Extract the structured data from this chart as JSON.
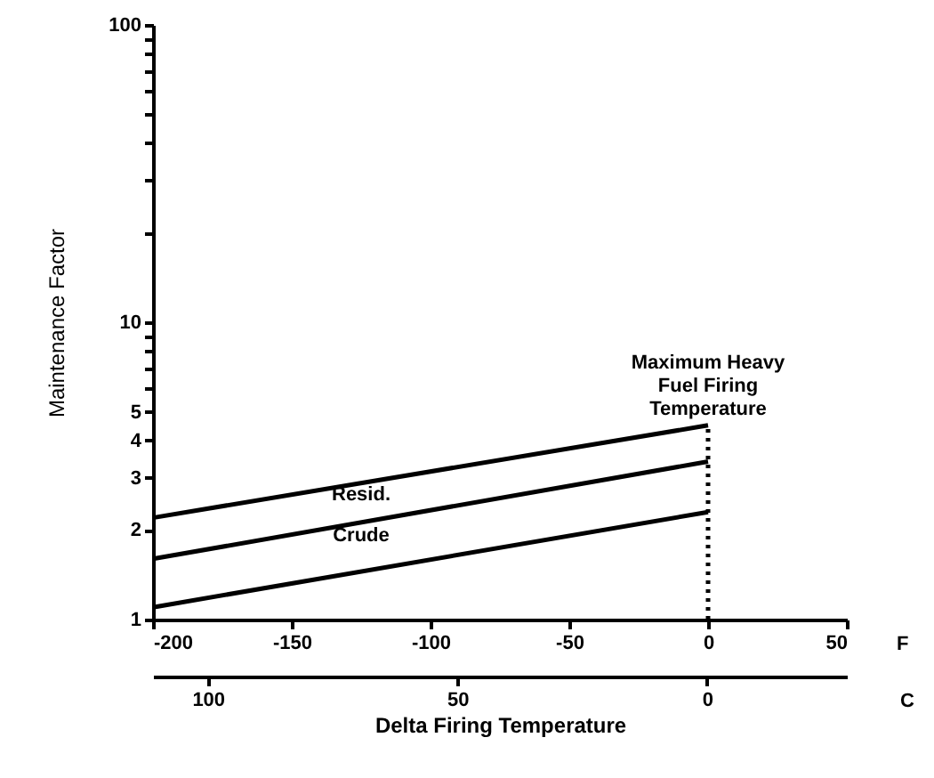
{
  "chart_data": {
    "type": "line",
    "xlabel": "Delta Firing Temperature",
    "ylabel": "Maintenance Factor",
    "x": [
      -200,
      0
    ],
    "series": [
      {
        "color": "#000000",
        "values": [
          2.2,
          4.5
        ]
      },
      {
        "color": "#000000",
        "values": [
          1.6,
          3.4
        ]
      },
      {
        "color": "#000000",
        "values": [
          1.1,
          2.3
        ]
      }
    ],
    "log": "y",
    "ylim": [
      1,
      100
    ],
    "yticks": [
      1,
      2,
      3,
      4,
      5,
      {
        "value": 6,
        "label": null
      },
      {
        "value": 7,
        "label": null
      },
      {
        "value": 8,
        "label": null
      },
      {
        "value": 9,
        "label": null
      },
      10,
      {
        "value": 20,
        "label": null
      },
      {
        "value": 30,
        "label": null
      },
      {
        "value": 40,
        "label": null
      },
      {
        "value": 50,
        "label": null
      },
      {
        "value": 60,
        "label": null
      },
      {
        "value": 70,
        "label": null
      },
      {
        "value": 80,
        "label": null
      },
      {
        "value": 90,
        "label": null
      },
      100
    ],
    "xlim": [
      -200,
      50
    ],
    "xticks": [
      -200,
      -150,
      -100,
      -50,
      0,
      50
    ],
    "x2lim": [
      111,
      -28
    ],
    "x2ticks": [
      100,
      50,
      0
    ],
    "ref_lines": [
      {
        "axis": "x",
        "value": 0,
        "label": "Maximum Heavy\nFuel Firing\nTemperature",
        "line_style": "dotted",
        "color": "#000000"
      }
    ],
    "annotations": [
      "Resid.",
      "Crude",
      "F",
      "C"
    ],
    "grid": false,
    "line_style": "solid"
  }
}
